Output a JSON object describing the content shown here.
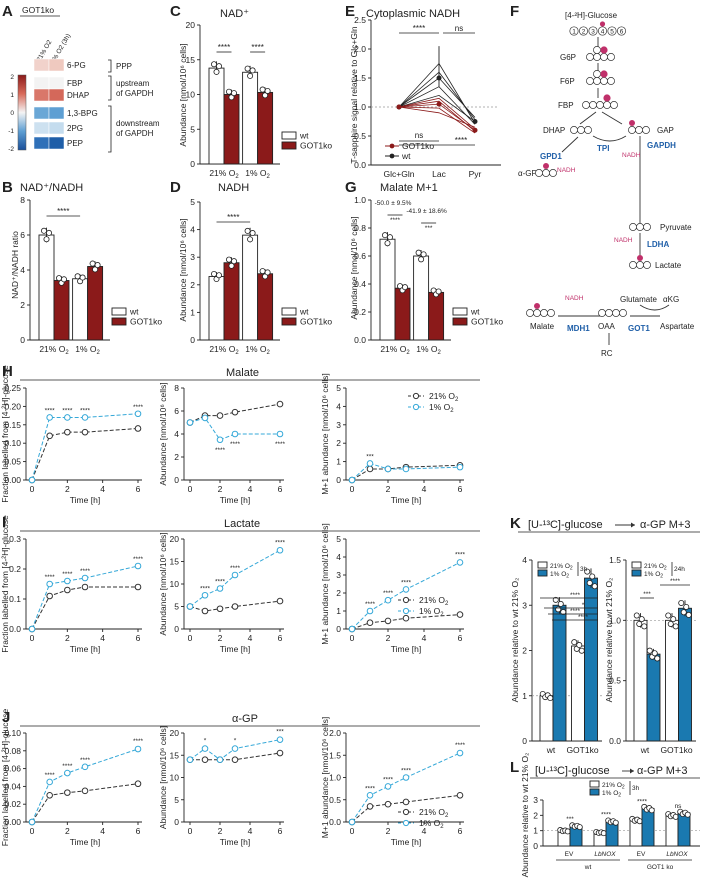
{
  "panels": {
    "A": {
      "letter": "A",
      "header": "GOT1ko",
      "cols": [
        "21% O2",
        "1% O2 (3h)"
      ],
      "rows": [
        "6-PG",
        "FBP",
        "DHAP",
        "1,3-BPG",
        "2PG",
        "PEP"
      ],
      "cells": [
        [
          "#f1d2cb",
          "#efc9bf"
        ],
        [
          "#f3f3f3",
          "#f4f4f4"
        ],
        [
          "#d9776a",
          "#d4685a"
        ],
        [
          "#6aa7d6",
          "#5e9fd3"
        ],
        [
          "#cde1f0",
          "#c4dcee"
        ],
        [
          "#2f70b8",
          "#1f5ea8"
        ]
      ],
      "groups": [
        "PPP",
        "upstream\nof GAPDH",
        "downstream\nof GAPDH"
      ],
      "scale": [
        "2",
        "1",
        "0",
        "-1",
        "-2"
      ],
      "scale_colors": [
        "#8b1a1a",
        "#d86a5a",
        "#f4f4f4",
        "#5e9fd3",
        "#1a4f99"
      ]
    },
    "B": {
      "letter": "B",
      "title": "NAD⁺/NADH",
      "ylabel": "NAD⁺/NADH ratio",
      "yticks": [
        "0",
        "2",
        "4",
        "6",
        "8"
      ],
      "xgroups": [
        "21% O",
        "1% O"
      ],
      "sig": "****"
    },
    "C": {
      "letter": "C",
      "title": "NAD⁺",
      "ylabel": "Abundance [nmol/10⁶ cells]",
      "yticks": [
        "0",
        "5",
        "10",
        "15",
        "20"
      ],
      "xgroups": [
        "21% O",
        "1% O"
      ],
      "sig": [
        "****",
        "****"
      ]
    },
    "D": {
      "letter": "D",
      "title": "NADH",
      "ylabel": "Abundance [nmol/10⁶ cells]",
      "yticks": [
        "0",
        "1",
        "2",
        "3",
        "4",
        "5"
      ],
      "xgroups": [
        "21% O",
        "1% O"
      ],
      "sig": "****"
    },
    "E": {
      "letter": "E",
      "title": "Cytoplasmic NADH",
      "ylabel": "T-sapphire signal relative to Glc+Gln",
      "yticks": [
        "0.0",
        "0.5",
        "1.0",
        "1.5",
        "2.0",
        "2.5"
      ],
      "xcats": [
        "Glc+Gln",
        "Lac",
        "Pyr"
      ],
      "sig_top": [
        "****",
        "ns"
      ],
      "sig_bottom": [
        "ns",
        "****"
      ]
    },
    "F": {
      "letter": "F",
      "labels": {
        "glucose": "[4-²H]-Glucose",
        "g6p": "G6P",
        "f6p": "F6P",
        "fbp": "FBP",
        "dhap": "DHAP",
        "gap": "GAP",
        "agp": "α-GP",
        "pyruvate": "Pyruvate",
        "lactate": "Lactate",
        "malate": "Malate",
        "oaa": "OAA",
        "glutamate": "Glutamate",
        "akg": "αKG",
        "aspartate": "Aspartate",
        "rc": "RC",
        "tpi": "TPI",
        "gpd1": "GPD1",
        "gapdh": "GAPDH",
        "ldha": "LDHA",
        "mdh1": "MDH1",
        "got1": "GOT1",
        "nadh": "NADH",
        "carbons": [
          "1",
          "2",
          "3",
          "4",
          "5",
          "6"
        ]
      }
    },
    "G": {
      "letter": "G",
      "title": "Malate M+1",
      "ylabel": "Abundance [nmol/10⁶ cells]",
      "yticks": [
        "0.0",
        "0.2",
        "0.4",
        "0.6",
        "0.8",
        "1.0"
      ],
      "xgroups": [
        "21% O",
        "1% O"
      ],
      "ann": [
        "-50.0 ± 9.5%",
        "-41.9 ± 18.6%"
      ],
      "sig": [
        "****",
        "***"
      ]
    },
    "H": {
      "letter": "H",
      "title": "Malate",
      "ylabels": [
        "Fraction labelled from [4-²H]-glucose",
        "Abundance [nmol/10⁶ cells]",
        "M+1 abundance [nmol/10⁶ cells]"
      ],
      "yticks": [
        [
          "0.00",
          "0.05",
          "0.10",
          "0.15",
          "0.20",
          "0.25"
        ],
        [
          "0",
          "2",
          "4",
          "6",
          "8"
        ],
        [
          "0",
          "1",
          "2",
          "3",
          "4",
          "5"
        ]
      ],
      "xlabel": "Time [h]",
      "xticks": [
        "0",
        "2",
        "4",
        "6"
      ]
    },
    "I": {
      "letter": "I",
      "title": "Lactate",
      "ylabels": [
        "Fraction labelled from [4-²H]-glucose",
        "Abundance [nmol/10⁶ cells]",
        "M+1 abundance [nmol/10⁶ cells]"
      ],
      "yticks": [
        [
          "0.0",
          "0.1",
          "0.2",
          "0.3"
        ],
        [
          "0",
          "5",
          "10",
          "15",
          "20"
        ],
        [
          "0",
          "1",
          "2",
          "3",
          "4",
          "5"
        ]
      ],
      "xlabel": "Time [h]",
      "xticks": [
        "0",
        "2",
        "4",
        "6"
      ]
    },
    "J": {
      "letter": "J",
      "title": "α-GP",
      "ylabels": [
        "Fraction labelled from [4-²H]-glucose",
        "Abundance [nmol/10⁶ cells]",
        "M+1 abundance [nmol/10⁶ cells]"
      ],
      "yticks": [
        [
          "0.00",
          "0.02",
          "0.04",
          "0.06",
          "0.08",
          "0.10"
        ],
        [
          "0",
          "5",
          "10",
          "15",
          "20"
        ],
        [
          "0.0",
          "0.5",
          "1.0",
          "1.5",
          "2.0"
        ]
      ],
      "xlabel": "Time [h]",
      "xticks": [
        "0",
        "2",
        "4",
        "6"
      ]
    },
    "K": {
      "letter": "K",
      "title_left": "[U-¹³C]-glucose",
      "title_right": "α-GP M+3",
      "ylabel": "Abundance relative to wt 21% O₂",
      "yticks": [
        "0",
        "1",
        "2",
        "3",
        "4"
      ],
      "xcats": [
        "wt",
        "GOT1ko"
      ],
      "leg_time": [
        "3h",
        "24h"
      ],
      "sig_left": [
        "****",
        "*",
        "****",
        "****"
      ],
      "sig_right": [
        "***",
        "****"
      ]
    },
    "L": {
      "letter": "L",
      "title_left": "[U-¹³C]-glucose",
      "title_right": "α-GP M+3",
      "ylabel": "Abundance relative to wt 21% O₂",
      "yticks": [
        "0",
        "1",
        "2",
        "3"
      ],
      "xcats": [
        "EV",
        "LbNOX",
        "EV",
        "LbNOX"
      ],
      "groups": [
        "wt",
        "GOT1 ko"
      ],
      "leg_time": "3h",
      "sig": [
        "***",
        "****",
        "****",
        "ns"
      ]
    }
  },
  "legend": {
    "wt": "wt",
    "ko": "GOT1ko",
    "o21": "21% O",
    "o1": "1% O",
    "o2sub": "2"
  },
  "chart_data": [
    {
      "panel": "B",
      "type": "bar",
      "title": "NAD⁺/NADH",
      "categories": [
        "21% O2",
        "1% O2"
      ],
      "series": [
        {
          "name": "wt",
          "values": [
            6.0,
            3.5
          ]
        },
        {
          "name": "GOT1ko",
          "values": [
            3.4,
            4.2
          ]
        }
      ],
      "ylim": [
        0,
        8
      ]
    },
    {
      "panel": "C",
      "type": "bar",
      "title": "NAD⁺",
      "categories": [
        "21% O2",
        "1% O2"
      ],
      "series": [
        {
          "name": "wt",
          "values": [
            13.8,
            13.2
          ]
        },
        {
          "name": "GOT1ko",
          "values": [
            10.0,
            10.3
          ]
        }
      ],
      "ylim": [
        0,
        20
      ]
    },
    {
      "panel": "D",
      "type": "bar",
      "title": "NADH",
      "categories": [
        "21% O2",
        "1% O2"
      ],
      "series": [
        {
          "name": "wt",
          "values": [
            2.3,
            3.8
          ]
        },
        {
          "name": "GOT1ko",
          "values": [
            2.8,
            2.4
          ]
        }
      ],
      "ylim": [
        0,
        5
      ]
    },
    {
      "panel": "G",
      "type": "bar",
      "title": "Malate M+1",
      "categories": [
        "21% O2",
        "1% O2"
      ],
      "series": [
        {
          "name": "wt",
          "values": [
            0.72,
            0.6
          ]
        },
        {
          "name": "GOT1ko",
          "values": [
            0.37,
            0.34
          ]
        }
      ],
      "ylim": [
        0,
        1.0
      ]
    },
    {
      "panel": "E",
      "type": "line",
      "title": "Cytoplasmic NADH",
      "categories": [
        "Glc+Gln",
        "Lac",
        "Pyr"
      ],
      "series": [
        {
          "name": "wt",
          "values": [
            1.0,
            1.5,
            0.75
          ]
        },
        {
          "name": "GOT1ko",
          "values": [
            1.0,
            1.05,
            0.6
          ]
        }
      ],
      "ylim": [
        0,
        2.5
      ]
    },
    {
      "panel": "H",
      "type": "line",
      "title": "Malate",
      "x": [
        0,
        1,
        2,
        3,
        6
      ],
      "subplots": [
        {
          "ylim": [
            0,
            0.25
          ],
          "series": [
            {
              "name": "21% O2",
              "values": [
                0.0,
                0.12,
                0.13,
                0.13,
                0.14
              ]
            },
            {
              "name": "1% O2",
              "values": [
                0.0,
                0.17,
                0.17,
                0.17,
                0.18
              ]
            }
          ]
        },
        {
          "ylim": [
            0,
            8
          ],
          "series": [
            {
              "name": "21% O2",
              "values": [
                5.0,
                5.6,
                5.6,
                5.9,
                6.6
              ]
            },
            {
              "name": "1% O2",
              "values": [
                5.0,
                5.4,
                3.5,
                4.0,
                4.0
              ]
            }
          ]
        },
        {
          "ylim": [
            0,
            5
          ],
          "series": [
            {
              "name": "21% O2",
              "values": [
                0.0,
                0.6,
                0.6,
                0.7,
                0.8
              ]
            },
            {
              "name": "1% O2",
              "values": [
                0.0,
                0.9,
                0.6,
                0.6,
                0.7
              ]
            }
          ]
        }
      ]
    },
    {
      "panel": "I",
      "type": "line",
      "title": "Lactate",
      "x": [
        0,
        1,
        2,
        3,
        6
      ],
      "subplots": [
        {
          "ylim": [
            0,
            0.3
          ],
          "series": [
            {
              "name": "21% O2",
              "values": [
                0.0,
                0.11,
                0.13,
                0.14,
                0.14
              ]
            },
            {
              "name": "1% O2",
              "values": [
                0.0,
                0.15,
                0.16,
                0.17,
                0.21
              ]
            }
          ]
        },
        {
          "ylim": [
            0,
            20
          ],
          "series": [
            {
              "name": "21% O2",
              "values": [
                5.0,
                4.0,
                4.5,
                5.0,
                6.2
              ]
            },
            {
              "name": "1% O2",
              "values": [
                5.0,
                7.5,
                9.0,
                12.0,
                17.5
              ]
            }
          ]
        },
        {
          "ylim": [
            0,
            5
          ],
          "series": [
            {
              "name": "21% O2",
              "values": [
                0.0,
                0.35,
                0.45,
                0.6,
                0.8
              ]
            },
            {
              "name": "1% O2",
              "values": [
                0.0,
                1.0,
                1.6,
                2.2,
                3.7
              ]
            }
          ]
        }
      ]
    },
    {
      "panel": "J",
      "type": "line",
      "title": "α-GP",
      "x": [
        0,
        1,
        2,
        3,
        6
      ],
      "subplots": [
        {
          "ylim": [
            0,
            0.1
          ],
          "series": [
            {
              "name": "21% O2",
              "values": [
                0.0,
                0.03,
                0.033,
                0.035,
                0.043
              ]
            },
            {
              "name": "1% O2",
              "values": [
                0.0,
                0.045,
                0.055,
                0.062,
                0.082
              ]
            }
          ]
        },
        {
          "ylim": [
            0,
            20
          ],
          "series": [
            {
              "name": "21% O2",
              "values": [
                14,
                14,
                14,
                14,
                15.5
              ]
            },
            {
              "name": "1% O2",
              "values": [
                14,
                16.5,
                14,
                16.5,
                18.5
              ]
            }
          ]
        },
        {
          "ylim": [
            0,
            2
          ],
          "series": [
            {
              "name": "21% O2",
              "values": [
                0.0,
                0.35,
                0.4,
                0.45,
                0.6
              ]
            },
            {
              "name": "1% O2",
              "values": [
                0.0,
                0.6,
                0.8,
                1.0,
                1.55
              ]
            }
          ]
        }
      ]
    },
    {
      "panel": "K",
      "type": "bar",
      "title": "α-GP M+3",
      "categories": [
        "wt",
        "GOT1ko"
      ],
      "subplots": [
        {
          "time": "3h",
          "ylim": [
            0,
            4
          ],
          "series": [
            {
              "name": "21% O2",
              "values": [
                1.0,
                2.1
              ]
            },
            {
              "name": "1% O2",
              "values": [
                3.0,
                3.6
              ]
            }
          ]
        },
        {
          "time": "24h",
          "ylim": [
            0,
            1.5
          ],
          "series": [
            {
              "name": "21% O2",
              "values": [
                1.0,
                1.0
              ]
            },
            {
              "name": "1% O2",
              "values": [
                0.72,
                1.1
              ]
            }
          ]
        }
      ]
    },
    {
      "panel": "L",
      "type": "bar",
      "title": "α-GP M+3",
      "categories": [
        "wt EV",
        "wt LbNOX",
        "GOT1 ko EV",
        "GOT1 ko LbNOX"
      ],
      "series": [
        {
          "name": "21% O2",
          "values": [
            1.0,
            0.88,
            1.7,
            2.0
          ]
        },
        {
          "name": "1% O2",
          "values": [
            1.3,
            1.6,
            2.45,
            2.15
          ]
        }
      ],
      "ylim": [
        0,
        3
      ]
    }
  ]
}
